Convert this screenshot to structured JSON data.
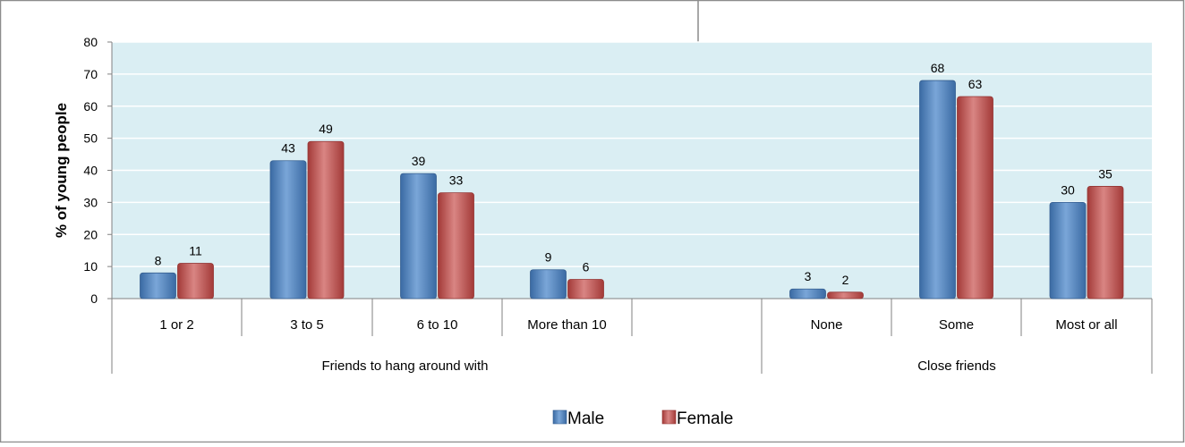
{
  "chart_data": {
    "type": "bar",
    "ylabel": "% of young people",
    "ylim": [
      0,
      80
    ],
    "yticks": [
      0,
      10,
      20,
      30,
      40,
      50,
      60,
      70,
      80
    ],
    "grid": true,
    "legend_position": "bottom",
    "panels": [
      {
        "group_label": "Friends to hang around with",
        "categories": [
          "1 or 2",
          "3 to 5",
          "6 to 10",
          "More than 10",
          ""
        ],
        "series": [
          {
            "name": "Male",
            "values": [
              8,
              43,
              39,
              9,
              null
            ]
          },
          {
            "name": "Female",
            "values": [
              11,
              49,
              33,
              6,
              null
            ]
          }
        ]
      },
      {
        "group_label": "Close friends",
        "categories": [
          "",
          "None",
          "Some",
          "Most or all"
        ],
        "series": [
          {
            "name": "Male",
            "values": [
              null,
              3,
              68,
              30
            ]
          },
          {
            "name": "Female",
            "values": [
              null,
              2,
              63,
              35
            ]
          }
        ]
      }
    ],
    "legend": [
      {
        "name": "Male",
        "color": "#4f81bd"
      },
      {
        "name": "Female",
        "color": "#c0504d"
      }
    ],
    "colors": {
      "plot_bg": "#daeef3",
      "frame": "#8c8c8c",
      "male": "#4f81bd",
      "female": "#c0504d"
    }
  }
}
